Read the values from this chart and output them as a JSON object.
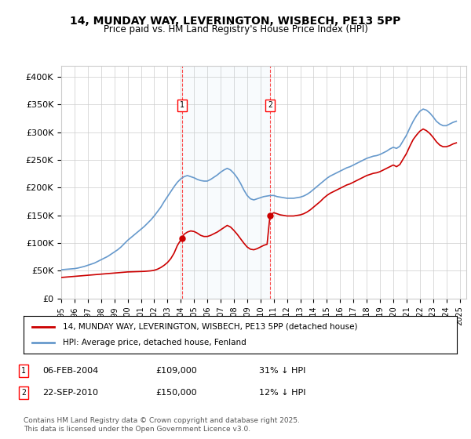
{
  "title": "14, MUNDAY WAY, LEVERINGTON, WISBECH, PE13 5PP",
  "subtitle": "Price paid vs. HM Land Registry's House Price Index (HPI)",
  "ylabel_format": "£{0}K",
  "ylim": [
    0,
    420000
  ],
  "yticks": [
    0,
    50000,
    100000,
    150000,
    200000,
    250000,
    300000,
    350000,
    400000
  ],
  "xlim_start": 1995.0,
  "xlim_end": 2025.5,
  "background_color": "#ffffff",
  "plot_bg_color": "#ffffff",
  "grid_color": "#cccccc",
  "hpi_color": "#6699cc",
  "price_color": "#cc0000",
  "sale1_date": 2004.09,
  "sale1_price": 109000,
  "sale1_label": "1",
  "sale2_date": 2010.72,
  "sale2_price": 150000,
  "sale2_label": "2",
  "legend_line1": "14, MUNDAY WAY, LEVERINGTON, WISBECH, PE13 5PP (detached house)",
  "legend_line2": "HPI: Average price, detached house, Fenland",
  "annotation1": "1    06-FEB-2004         £109,000         31% ↓ HPI",
  "annotation2": "2    22-SEP-2010         £150,000         12% ↓ HPI",
  "footnote": "Contains HM Land Registry data © Crown copyright and database right 2025.\nThis data is licensed under the Open Government Licence v3.0.",
  "hpi_data_x": [
    1995.0,
    1995.25,
    1995.5,
    1995.75,
    1996.0,
    1996.25,
    1996.5,
    1996.75,
    1997.0,
    1997.25,
    1997.5,
    1997.75,
    1998.0,
    1998.25,
    1998.5,
    1998.75,
    1999.0,
    1999.25,
    1999.5,
    1999.75,
    2000.0,
    2000.25,
    2000.5,
    2000.75,
    2001.0,
    2001.25,
    2001.5,
    2001.75,
    2002.0,
    2002.25,
    2002.5,
    2002.75,
    2003.0,
    2003.25,
    2003.5,
    2003.75,
    2004.0,
    2004.25,
    2004.5,
    2004.75,
    2005.0,
    2005.25,
    2005.5,
    2005.75,
    2006.0,
    2006.25,
    2006.5,
    2006.75,
    2007.0,
    2007.25,
    2007.5,
    2007.75,
    2008.0,
    2008.25,
    2008.5,
    2008.75,
    2009.0,
    2009.25,
    2009.5,
    2009.75,
    2010.0,
    2010.25,
    2010.5,
    2010.75,
    2011.0,
    2011.25,
    2011.5,
    2011.75,
    2012.0,
    2012.25,
    2012.5,
    2012.75,
    2013.0,
    2013.25,
    2013.5,
    2013.75,
    2014.0,
    2014.25,
    2014.5,
    2014.75,
    2015.0,
    2015.25,
    2015.5,
    2015.75,
    2016.0,
    2016.25,
    2016.5,
    2016.75,
    2017.0,
    2017.25,
    2017.5,
    2017.75,
    2018.0,
    2018.25,
    2018.5,
    2018.75,
    2019.0,
    2019.25,
    2019.5,
    2019.75,
    2020.0,
    2020.25,
    2020.5,
    2020.75,
    2021.0,
    2021.25,
    2021.5,
    2021.75,
    2022.0,
    2022.25,
    2022.5,
    2022.75,
    2023.0,
    2023.25,
    2023.5,
    2023.75,
    2024.0,
    2024.25,
    2024.5,
    2024.75
  ],
  "hpi_data_y": [
    52000,
    52500,
    53000,
    53500,
    54000,
    55000,
    56500,
    58000,
    60000,
    62000,
    64000,
    67000,
    70000,
    73000,
    76000,
    80000,
    84000,
    88000,
    93000,
    99000,
    105000,
    110000,
    115000,
    120000,
    125000,
    130000,
    136000,
    142000,
    149000,
    157000,
    165000,
    175000,
    184000,
    193000,
    202000,
    210000,
    216000,
    220000,
    222000,
    220000,
    218000,
    215000,
    213000,
    212000,
    212000,
    215000,
    219000,
    223000,
    228000,
    232000,
    235000,
    232000,
    226000,
    218000,
    208000,
    196000,
    186000,
    180000,
    178000,
    180000,
    182000,
    184000,
    185000,
    186000,
    186000,
    184000,
    183000,
    182000,
    181000,
    181000,
    181000,
    182000,
    183000,
    185000,
    188000,
    192000,
    197000,
    202000,
    207000,
    212000,
    217000,
    221000,
    224000,
    227000,
    230000,
    233000,
    236000,
    238000,
    241000,
    244000,
    247000,
    250000,
    253000,
    255000,
    257000,
    258000,
    260000,
    263000,
    266000,
    270000,
    273000,
    271000,
    275000,
    285000,
    295000,
    308000,
    320000,
    330000,
    338000,
    342000,
    340000,
    335000,
    328000,
    320000,
    315000,
    312000,
    312000,
    315000,
    318000,
    320000
  ],
  "price_data_x": [
    1995.0,
    1995.25,
    1995.5,
    1995.75,
    1996.0,
    1996.25,
    1996.5,
    1996.75,
    1997.0,
    1997.25,
    1997.5,
    1997.75,
    1998.0,
    1998.25,
    1998.5,
    1998.75,
    1999.0,
    1999.25,
    1999.5,
    1999.75,
    2000.0,
    2000.25,
    2000.5,
    2000.75,
    2001.0,
    2001.25,
    2001.5,
    2001.75,
    2002.0,
    2002.25,
    2002.5,
    2002.75,
    2003.0,
    2003.25,
    2003.5,
    2003.75,
    2004.09,
    2004.25,
    2004.5,
    2004.75,
    2005.0,
    2005.25,
    2005.5,
    2005.75,
    2006.0,
    2006.25,
    2006.5,
    2006.75,
    2007.0,
    2007.25,
    2007.5,
    2007.75,
    2008.0,
    2008.25,
    2008.5,
    2008.75,
    2009.0,
    2009.25,
    2009.5,
    2009.75,
    2010.0,
    2010.25,
    2010.5,
    2010.72,
    2011.0,
    2011.25,
    2011.5,
    2011.75,
    2012.0,
    2012.25,
    2012.5,
    2012.75,
    2013.0,
    2013.25,
    2013.5,
    2013.75,
    2014.0,
    2014.25,
    2014.5,
    2014.75,
    2015.0,
    2015.25,
    2015.5,
    2015.75,
    2016.0,
    2016.25,
    2016.5,
    2016.75,
    2017.0,
    2017.25,
    2017.5,
    2017.75,
    2018.0,
    2018.25,
    2018.5,
    2018.75,
    2019.0,
    2019.25,
    2019.5,
    2019.75,
    2020.0,
    2020.25,
    2020.5,
    2020.75,
    2021.0,
    2021.25,
    2021.5,
    2021.75,
    2022.0,
    2022.25,
    2022.5,
    2022.75,
    2023.0,
    2023.25,
    2023.5,
    2023.75,
    2024.0,
    2024.25,
    2024.5,
    2024.75
  ],
  "price_data_y": [
    38000,
    38500,
    39000,
    39500,
    40000,
    40500,
    41000,
    41500,
    42000,
    42500,
    43000,
    43500,
    44000,
    44500,
    45000,
    45500,
    46000,
    46500,
    47000,
    47500,
    48000,
    48200,
    48400,
    48600,
    48800,
    49000,
    49500,
    50000,
    51000,
    53000,
    56000,
    60000,
    65000,
    72000,
    82000,
    96000,
    109000,
    116000,
    120000,
    122000,
    121000,
    118000,
    114000,
    112000,
    112000,
    114000,
    117000,
    120000,
    124000,
    128000,
    132000,
    129000,
    123000,
    116000,
    108000,
    100000,
    93000,
    89000,
    88000,
    90000,
    93000,
    96000,
    98000,
    150000,
    155000,
    153000,
    151000,
    150000,
    149000,
    149000,
    149000,
    150000,
    151000,
    153000,
    156000,
    160000,
    165000,
    170000,
    175000,
    181000,
    186000,
    190000,
    193000,
    196000,
    199000,
    202000,
    205000,
    207000,
    210000,
    213000,
    216000,
    219000,
    222000,
    224000,
    226000,
    227000,
    229000,
    232000,
    235000,
    238000,
    241000,
    238000,
    242000,
    252000,
    262000,
    275000,
    287000,
    295000,
    302000,
    306000,
    303000,
    298000,
    291000,
    283000,
    277000,
    274000,
    274000,
    276000,
    279000,
    281000
  ]
}
